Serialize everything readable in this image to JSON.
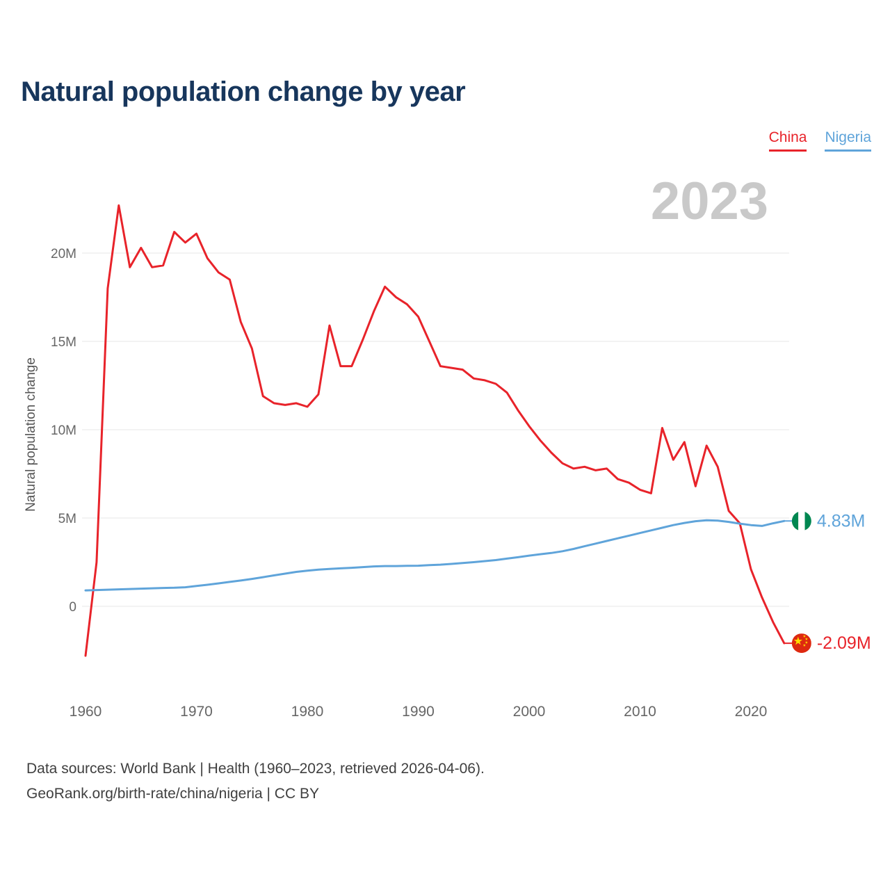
{
  "page": {
    "title": "Natural population change by year",
    "watermark": "2023",
    "footer_line1": "Data sources: World Bank | Health (1960–2023, retrieved 2026-04-06).",
    "footer_line2": "GeoRank.org/birth-rate/china/nigeria | CC BY"
  },
  "legend": [
    {
      "label": "China",
      "color": "#e8232a"
    },
    {
      "label": "Nigeria",
      "color": "#5fa4da"
    }
  ],
  "colors": {
    "title": "#17365c",
    "gridline": "#e7e7e7",
    "tick_text": "#666666",
    "watermark": "#c9c9c9",
    "china_red": "#e8232a",
    "nigeria_blue": "#5fa4da",
    "china_flag_red": "#de2910",
    "china_flag_yellow": "#ffde00",
    "nigeria_flag_green": "#008751"
  },
  "chart_data": {
    "type": "line",
    "title": "Natural population change by year",
    "xlabel": "",
    "ylabel": "Natural population change",
    "grid": "horizontal",
    "legend_position": "top-right",
    "ylim": [
      -3.2,
      23.5
    ],
    "xlim": [
      1960,
      2023
    ],
    "y_ticks": [
      {
        "value": 0,
        "label": "0"
      },
      {
        "value": 5,
        "label": "5M"
      },
      {
        "value": 10,
        "label": "10M"
      },
      {
        "value": 15,
        "label": "15M"
      },
      {
        "value": 20,
        "label": "20M"
      }
    ],
    "x_ticks": [
      1960,
      1970,
      1980,
      1990,
      2000,
      2010,
      2020
    ],
    "x": [
      1960,
      1961,
      1962,
      1963,
      1964,
      1965,
      1966,
      1967,
      1968,
      1969,
      1970,
      1971,
      1972,
      1973,
      1974,
      1975,
      1976,
      1977,
      1978,
      1979,
      1980,
      1981,
      1982,
      1983,
      1984,
      1985,
      1986,
      1987,
      1988,
      1989,
      1990,
      1991,
      1992,
      1993,
      1994,
      1995,
      1996,
      1997,
      1998,
      1999,
      2000,
      2001,
      2002,
      2003,
      2004,
      2005,
      2006,
      2007,
      2008,
      2009,
      2010,
      2011,
      2012,
      2013,
      2014,
      2015,
      2016,
      2017,
      2018,
      2019,
      2020,
      2021,
      2022,
      2023
    ],
    "series": [
      {
        "name": "China",
        "color": "#e8232a",
        "flag": "china",
        "end_label": "-2.09M",
        "values": [
          -2.8,
          2.5,
          18.0,
          22.7,
          19.2,
          20.3,
          19.2,
          19.3,
          21.2,
          20.6,
          21.1,
          19.7,
          18.9,
          18.5,
          16.1,
          14.6,
          11.9,
          11.5,
          11.4,
          11.5,
          11.3,
          12.0,
          15.9,
          13.6,
          13.6,
          15.1,
          16.7,
          18.1,
          17.5,
          17.1,
          16.4,
          15.0,
          13.6,
          13.5,
          13.4,
          12.9,
          12.8,
          12.6,
          12.1,
          11.1,
          10.2,
          9.4,
          8.7,
          8.1,
          7.8,
          7.9,
          7.7,
          7.8,
          7.2,
          7.0,
          6.6,
          6.4,
          10.1,
          8.3,
          9.3,
          6.8,
          9.1,
          7.9,
          5.4,
          4.7,
          2.1,
          0.5,
          -0.9,
          -2.09
        ]
      },
      {
        "name": "Nigeria",
        "color": "#5fa4da",
        "flag": "nigeria",
        "end_label": "4.83M",
        "values": [
          0.9,
          0.92,
          0.94,
          0.96,
          0.98,
          1.0,
          1.02,
          1.04,
          1.05,
          1.08,
          1.15,
          1.22,
          1.3,
          1.38,
          1.46,
          1.55,
          1.65,
          1.75,
          1.85,
          1.95,
          2.02,
          2.08,
          2.12,
          2.15,
          2.18,
          2.22,
          2.26,
          2.28,
          2.28,
          2.29,
          2.3,
          2.33,
          2.36,
          2.4,
          2.45,
          2.5,
          2.56,
          2.62,
          2.7,
          2.78,
          2.87,
          2.95,
          3.02,
          3.12,
          3.25,
          3.4,
          3.55,
          3.7,
          3.85,
          4.0,
          4.15,
          4.3,
          4.45,
          4.6,
          4.72,
          4.82,
          4.87,
          4.85,
          4.78,
          4.68,
          4.6,
          4.55,
          4.7,
          4.83
        ]
      }
    ]
  }
}
